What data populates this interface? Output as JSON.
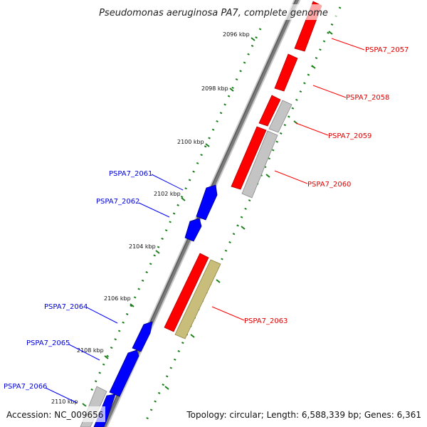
{
  "title": "Pseudomonas aeruginosa PA7, complete genome",
  "accession": "Accession: NC_009656",
  "topology": "Topology: circular; Length: 6,588,339 bp; Genes: 6,361",
  "colors": {
    "forward_gene": "#ff0000",
    "reverse_gene": "#0000ff",
    "gray_gene": "#c4c4c4",
    "rna_gene": "#c8bd7a",
    "backbone": "#808080",
    "tick": "#1a7f1a"
  },
  "kbp_ticks": [
    {
      "label": "2096 kbp"
    },
    {
      "label": "2098 kbp"
    },
    {
      "label": "2100 kbp"
    },
    {
      "label": "2102 kbp"
    },
    {
      "label": "2104 kbp"
    },
    {
      "label": "2106 kbp"
    },
    {
      "label": "2108 kbp"
    },
    {
      "label": "2110 kbp"
    }
  ],
  "gene_labels": [
    {
      "label": "PSPA7_2057",
      "strand": "forward"
    },
    {
      "label": "PSPA7_2058",
      "strand": "forward"
    },
    {
      "label": "PSPA7_2059",
      "strand": "forward"
    },
    {
      "label": "PSPA7_2060",
      "strand": "forward"
    },
    {
      "label": "PSPA7_2061",
      "strand": "reverse"
    },
    {
      "label": "PSPA7_2062",
      "strand": "reverse"
    },
    {
      "label": "PSPA7_2063",
      "strand": "forward"
    },
    {
      "label": "PSPA7_2064",
      "strand": "reverse"
    },
    {
      "label": "PSPA7_2065",
      "strand": "reverse"
    },
    {
      "label": "PSPA7_2066",
      "strand": "reverse"
    }
  ]
}
